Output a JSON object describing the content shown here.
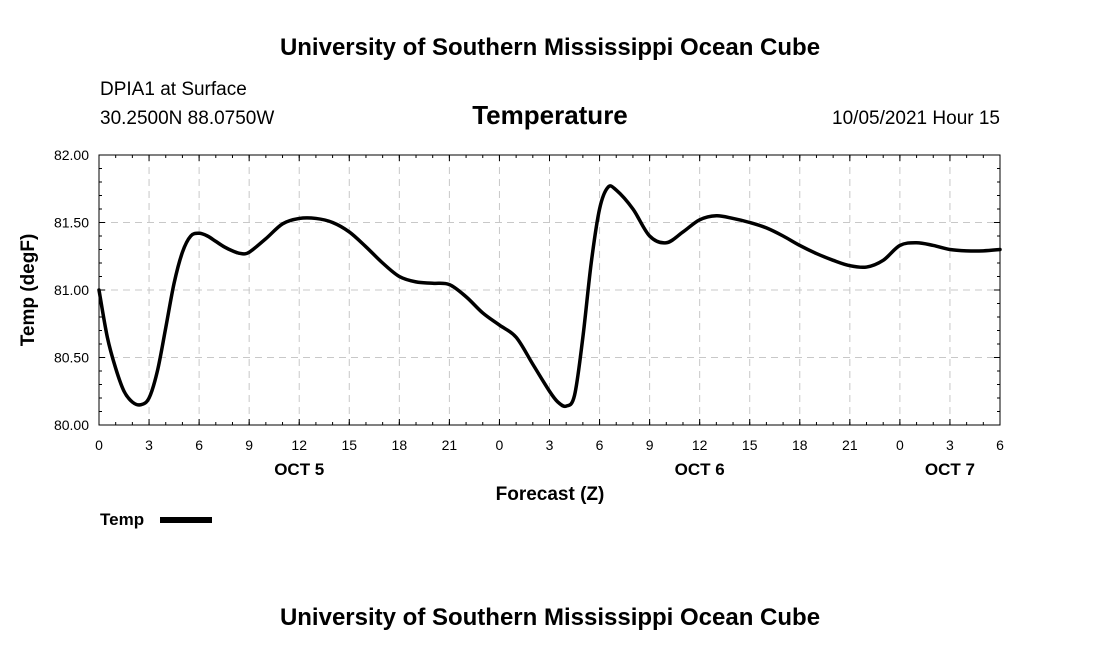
{
  "header": {
    "title_top": "University of Southern Mississippi Ocean Cube",
    "station": "DPIA1 at Surface",
    "coords": "30.2500N  88.0750W",
    "variable": "Temperature",
    "datetime": "10/05/2021 Hour 15",
    "title_bottom": "University of Southern Mississippi Ocean Cube"
  },
  "chart_data": {
    "type": "line",
    "title": "Temperature",
    "xlabel": "Forecast (Z)",
    "ylabel": "Temp (degF)",
    "x_range_hours": [
      0,
      54
    ],
    "ylim": [
      80.0,
      82.0
    ],
    "y_ticks": [
      "80.00",
      "80.50",
      "81.00",
      "81.50",
      "82.00"
    ],
    "x_ticks": [
      "0",
      "3",
      "6",
      "9",
      "12",
      "15",
      "18",
      "21",
      "0",
      "3",
      "6",
      "9",
      "12",
      "15",
      "18",
      "21",
      "0",
      "3",
      "6"
    ],
    "day_labels": [
      {
        "label": "OCT 5",
        "hour": 12
      },
      {
        "label": "OCT 6",
        "hour": 36
      },
      {
        "label": "OCT 7",
        "hour": 51
      }
    ],
    "grid": true,
    "legend": {
      "position": "bottom-left",
      "entries": [
        "Temp"
      ]
    },
    "series": [
      {
        "name": "Temp",
        "color": "#000000",
        "x": [
          0,
          0.5,
          1,
          1.5,
          2,
          2.5,
          3,
          3.5,
          4,
          4.5,
          5,
          5.5,
          6,
          6.5,
          7,
          7.5,
          8,
          8.5,
          9,
          10,
          11,
          12,
          13,
          14,
          15,
          16,
          17,
          18,
          19,
          20,
          21,
          22,
          23,
          24,
          25,
          26,
          27,
          27.5,
          28,
          28.5,
          29,
          29.5,
          30,
          30.5,
          31,
          32,
          33,
          34,
          35,
          36,
          37,
          38,
          39,
          40,
          41,
          42,
          43,
          44,
          45,
          46,
          47,
          48,
          49,
          50,
          51,
          52,
          53,
          54
        ],
        "values": [
          81.0,
          80.65,
          80.42,
          80.25,
          80.17,
          80.15,
          80.2,
          80.4,
          80.72,
          81.05,
          81.28,
          81.4,
          81.42,
          81.4,
          81.36,
          81.32,
          81.29,
          81.27,
          81.28,
          81.38,
          81.49,
          81.53,
          81.53,
          81.5,
          81.43,
          81.32,
          81.2,
          81.1,
          81.06,
          81.05,
          81.04,
          80.95,
          80.83,
          80.74,
          80.65,
          80.45,
          80.25,
          80.17,
          80.14,
          80.22,
          80.65,
          81.2,
          81.6,
          81.76,
          81.74,
          81.6,
          81.4,
          81.35,
          81.43,
          81.52,
          81.55,
          81.53,
          81.5,
          81.46,
          81.4,
          81.33,
          81.27,
          81.22,
          81.18,
          81.17,
          81.22,
          81.33,
          81.35,
          81.33,
          81.3,
          81.29,
          81.29,
          81.3
        ]
      }
    ]
  }
}
